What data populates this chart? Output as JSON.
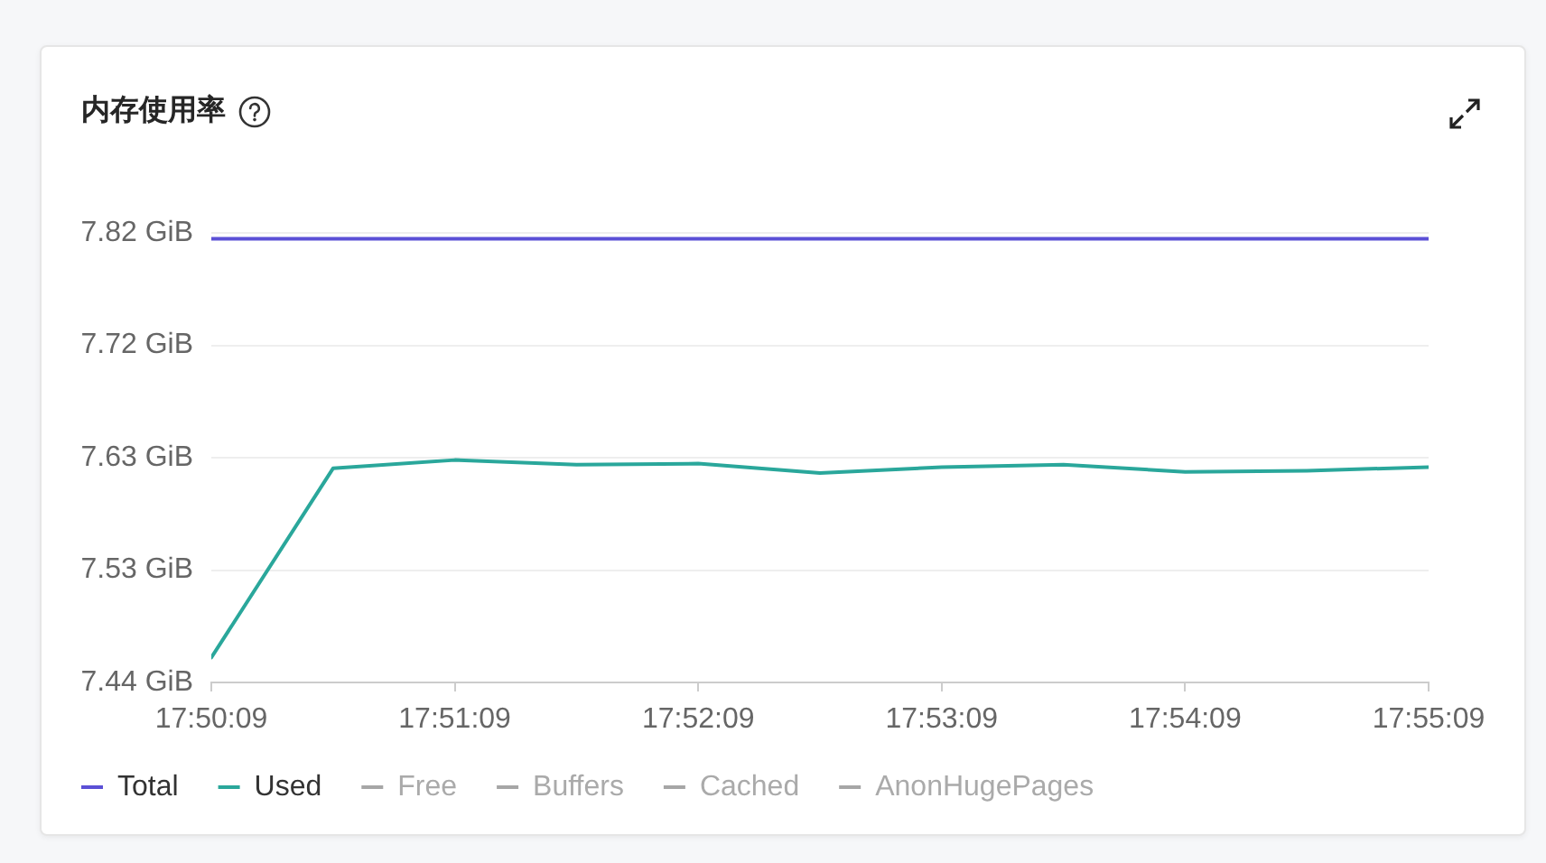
{
  "chart_data": {
    "type": "line",
    "title": "内存使用率",
    "x": [
      17.835833,
      17.844167,
      17.8525,
      17.860833,
      17.869167,
      17.8775,
      17.885833,
      17.894167,
      17.9025,
      17.910833,
      17.919167
    ],
    "series": [
      {
        "name": "Total",
        "color": "#5b50d6",
        "values": [
          7.815,
          7.815,
          7.815,
          7.815,
          7.815,
          7.815,
          7.815,
          7.815,
          7.815,
          7.815,
          7.815
        ]
      },
      {
        "name": "Used",
        "color": "#2aa79b",
        "values": [
          7.461,
          7.621,
          7.628,
          7.624,
          7.625,
          7.617,
          7.622,
          7.624,
          7.618,
          7.619,
          7.622
        ]
      },
      {
        "name": "Free",
        "color": "#a6a6a6",
        "values": [
          null,
          null,
          null,
          null,
          null,
          null,
          null,
          null,
          null,
          null,
          null
        ]
      },
      {
        "name": "Buffers",
        "color": "#a6a6a6",
        "values": [
          null,
          null,
          null,
          null,
          null,
          null,
          null,
          null,
          null,
          null,
          null
        ]
      },
      {
        "name": "Cached",
        "color": "#a6a6a6",
        "values": [
          null,
          null,
          null,
          null,
          null,
          null,
          null,
          null,
          null,
          null,
          null
        ]
      },
      {
        "name": "AnonHugePages",
        "color": "#a6a6a6",
        "values": [
          null,
          null,
          null,
          null,
          null,
          null,
          null,
          null,
          null,
          null,
          null
        ]
      }
    ],
    "xlim": [
      17.835833,
      17.919167
    ],
    "xticks": [
      {
        "value": 17.835833,
        "label": "17:50:09"
      },
      {
        "value": 17.8525,
        "label": "17:51:09"
      },
      {
        "value": 17.869167,
        "label": "17:52:09"
      },
      {
        "value": 17.885833,
        "label": "17:53:09"
      },
      {
        "value": 17.9025,
        "label": "17:54:09"
      },
      {
        "value": 17.919167,
        "label": "17:55:09"
      }
    ],
    "ylim": [
      7.44,
      7.82
    ],
    "yticks": [
      {
        "value": 7.44,
        "label": "7.44 GiB"
      },
      {
        "value": 7.535,
        "label": "7.53 GiB"
      },
      {
        "value": 7.63,
        "label": "7.63 GiB"
      },
      {
        "value": 7.725,
        "label": "7.72 GiB"
      },
      {
        "value": 7.82,
        "label": "7.82 GiB"
      }
    ],
    "grid": "y",
    "legend": "bottom left"
  }
}
